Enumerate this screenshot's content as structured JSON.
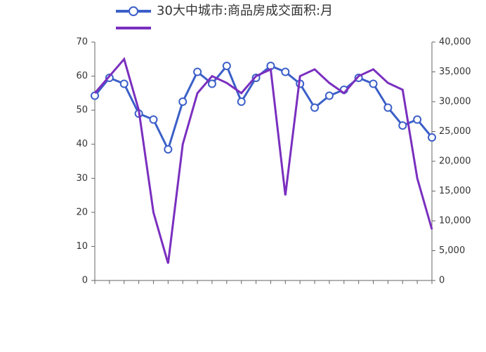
{
  "chart_data": {
    "type": "line",
    "categories": [
      null,
      null,
      null,
      null,
      null,
      null,
      null,
      null,
      null,
      null,
      null,
      null,
      null,
      null,
      null,
      null,
      null,
      null,
      null,
      null,
      null,
      null,
      null,
      null
    ],
    "series": [
      {
        "name": "30大中城市:商品房成交面积:月",
        "color": "#3b5fc8",
        "axis": "y2",
        "values": [
          31000,
          34000,
          33000,
          28000,
          27000,
          22000,
          30000,
          35000,
          33000,
          36000,
          30000,
          34000,
          36000,
          35000,
          33000,
          29000,
          31000,
          32000,
          34000,
          33000,
          29000,
          26000,
          27000,
          24000
        ]
      },
      {
        "color": "#7a2fbf",
        "axis": "y",
        "values": [
          55,
          60,
          65,
          50,
          20,
          5,
          40,
          55,
          60,
          58,
          55,
          60,
          62,
          25,
          60,
          62,
          58,
          55,
          60,
          62,
          58,
          56,
          30,
          15
        ]
      }
    ],
    "ylim": [
      0,
      70
    ],
    "yticks": [
      0,
      10,
      20,
      30,
      40,
      50,
      60,
      70
    ],
    "y2lim": [
      0,
      40000
    ],
    "y2ticks": [
      0,
      {
        "value": 5000,
        "label": "5,000"
      },
      {
        "value": 10000,
        "label": "10,000"
      },
      {
        "value": 15000,
        "label": "15,000"
      },
      {
        "value": 20000,
        "label": "20,000"
      },
      {
        "value": 25000,
        "label": "25,000"
      },
      {
        "value": 30000,
        "label": "30,000"
      },
      {
        "value": 35000,
        "label": "35,000"
      },
      {
        "value": 40000,
        "label": "40,000"
      }
    ],
    "grid": false
  }
}
